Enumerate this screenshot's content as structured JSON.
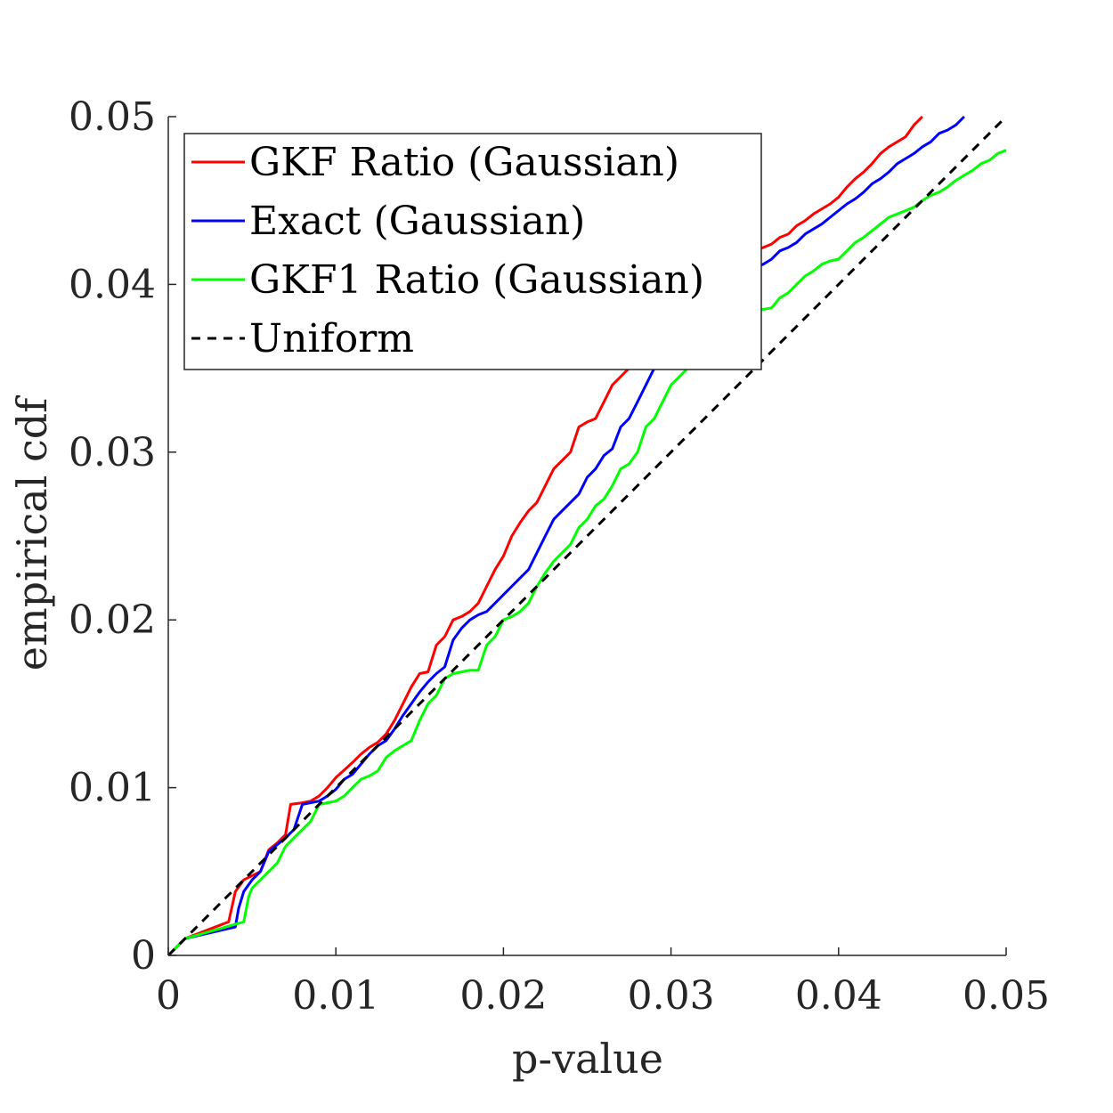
{
  "chart_data": {
    "type": "line",
    "xlabel": "p-value",
    "ylabel": "empirical cdf",
    "xlim": [
      0,
      0.05
    ],
    "ylim": [
      0,
      0.05
    ],
    "xticks": [
      0,
      0.01,
      0.02,
      0.03,
      0.04,
      0.05
    ],
    "yticks": [
      0,
      0.01,
      0.02,
      0.03,
      0.04,
      0.05
    ],
    "xtick_labels": [
      "0",
      "0.01",
      "0.02",
      "0.03",
      "0.04",
      "0.05"
    ],
    "ytick_labels": [
      "0",
      "0.01",
      "0.02",
      "0.03",
      "0.04",
      "0.05"
    ],
    "grid": false,
    "legend_position": "top-left",
    "series": [
      {
        "name": "GKF Ratio (Gaussian)",
        "color": "#ff0000",
        "dash": "solid",
        "x": [
          0,
          0.0005,
          0.001,
          0.0036,
          0.004,
          0.0045,
          0.0055,
          0.006,
          0.0065,
          0.007,
          0.0073,
          0.008,
          0.0085,
          0.009,
          0.0095,
          0.01,
          0.011,
          0.0115,
          0.012,
          0.0125,
          0.013,
          0.0135,
          0.014,
          0.0145,
          0.015,
          0.0155,
          0.016,
          0.0165,
          0.017,
          0.0175,
          0.018,
          0.0185,
          0.019,
          0.0195,
          0.02,
          0.0205,
          0.021,
          0.0215,
          0.022,
          0.0225,
          0.023,
          0.0235,
          0.024,
          0.0245,
          0.025,
          0.0255,
          0.026,
          0.0265,
          0.027,
          0.0275,
          0.028,
          0.035,
          0.0355,
          0.036,
          0.0365,
          0.037,
          0.0375,
          0.038,
          0.0385,
          0.039,
          0.0395,
          0.04,
          0.0405,
          0.041,
          0.0415,
          0.042,
          0.0425,
          0.043,
          0.0435,
          0.044,
          0.0445,
          0.045
        ],
        "y": [
          0,
          0.0005,
          0.001,
          0.002,
          0.0038,
          0.0045,
          0.005,
          0.0063,
          0.0067,
          0.0072,
          0.009,
          0.0091,
          0.0092,
          0.0095,
          0.01,
          0.0106,
          0.0115,
          0.012,
          0.0124,
          0.0127,
          0.0132,
          0.014,
          0.015,
          0.016,
          0.0168,
          0.0169,
          0.0185,
          0.019,
          0.02,
          0.0202,
          0.0205,
          0.021,
          0.022,
          0.023,
          0.0238,
          0.025,
          0.0258,
          0.0265,
          0.027,
          0.028,
          0.029,
          0.0295,
          0.03,
          0.0315,
          0.0318,
          0.032,
          0.033,
          0.034,
          0.0345,
          0.035,
          0.036,
          0.042,
          0.0422,
          0.0424,
          0.0428,
          0.043,
          0.0435,
          0.0438,
          0.0442,
          0.0445,
          0.0448,
          0.0452,
          0.0458,
          0.0463,
          0.0467,
          0.0472,
          0.0478,
          0.0482,
          0.0485,
          0.0488,
          0.0495,
          0.05
        ]
      },
      {
        "name": "Exact (Gaussian)",
        "color": "#0000ff",
        "dash": "solid",
        "x": [
          0,
          0.0005,
          0.001,
          0.004,
          0.0042,
          0.0045,
          0.005,
          0.0055,
          0.006,
          0.0065,
          0.007,
          0.0075,
          0.008,
          0.009,
          0.0095,
          0.01,
          0.0105,
          0.011,
          0.0115,
          0.012,
          0.0125,
          0.013,
          0.0135,
          0.014,
          0.0145,
          0.015,
          0.0155,
          0.016,
          0.0165,
          0.017,
          0.0175,
          0.018,
          0.0185,
          0.019,
          0.0195,
          0.02,
          0.0205,
          0.021,
          0.0215,
          0.022,
          0.0225,
          0.023,
          0.0235,
          0.024,
          0.0245,
          0.025,
          0.0255,
          0.026,
          0.0265,
          0.027,
          0.0275,
          0.028,
          0.0285,
          0.029,
          0.035,
          0.0355,
          0.036,
          0.0365,
          0.037,
          0.0375,
          0.038,
          0.0385,
          0.039,
          0.0395,
          0.04,
          0.0405,
          0.041,
          0.0415,
          0.042,
          0.0425,
          0.043,
          0.0435,
          0.044,
          0.0445,
          0.045,
          0.0455,
          0.046,
          0.0465,
          0.047,
          0.0475
        ],
        "y": [
          0,
          0.0005,
          0.001,
          0.0017,
          0.0028,
          0.0038,
          0.0045,
          0.005,
          0.0062,
          0.0066,
          0.007,
          0.0075,
          0.009,
          0.0092,
          0.0095,
          0.0099,
          0.0105,
          0.0108,
          0.0114,
          0.012,
          0.0125,
          0.0128,
          0.0135,
          0.0143,
          0.015,
          0.0157,
          0.0163,
          0.0168,
          0.0172,
          0.0188,
          0.0195,
          0.02,
          0.0203,
          0.0205,
          0.021,
          0.0215,
          0.022,
          0.0225,
          0.023,
          0.024,
          0.025,
          0.026,
          0.0265,
          0.027,
          0.0275,
          0.0285,
          0.029,
          0.0298,
          0.0302,
          0.0315,
          0.032,
          0.033,
          0.034,
          0.035,
          0.041,
          0.0412,
          0.0415,
          0.042,
          0.0422,
          0.0425,
          0.043,
          0.0433,
          0.0436,
          0.044,
          0.0444,
          0.0448,
          0.0451,
          0.0455,
          0.046,
          0.0463,
          0.0467,
          0.0472,
          0.0475,
          0.0478,
          0.0482,
          0.0485,
          0.049,
          0.0492,
          0.0495,
          0.05
        ]
      },
      {
        "name": "GKF1 Ratio (Gaussian)",
        "color": "#00ff00",
        "dash": "solid",
        "x": [
          0,
          0.0005,
          0.001,
          0.0045,
          0.0048,
          0.005,
          0.0055,
          0.006,
          0.0065,
          0.007,
          0.0075,
          0.008,
          0.0085,
          0.009,
          0.0095,
          0.01,
          0.0105,
          0.011,
          0.0115,
          0.012,
          0.0125,
          0.013,
          0.0135,
          0.014,
          0.0145,
          0.015,
          0.0155,
          0.016,
          0.0165,
          0.017,
          0.0175,
          0.018,
          0.0185,
          0.019,
          0.0195,
          0.02,
          0.0205,
          0.021,
          0.0215,
          0.022,
          0.0225,
          0.023,
          0.0235,
          0.024,
          0.0245,
          0.025,
          0.0255,
          0.026,
          0.0265,
          0.027,
          0.0275,
          0.028,
          0.0285,
          0.029,
          0.0295,
          0.03,
          0.0305,
          0.031,
          0.0315,
          0.032,
          0.0325,
          0.036,
          0.0365,
          0.037,
          0.0375,
          0.038,
          0.0385,
          0.039,
          0.0395,
          0.04,
          0.0405,
          0.041,
          0.0415,
          0.042,
          0.0425,
          0.043,
          0.0435,
          0.044,
          0.0445,
          0.045,
          0.0455,
          0.046,
          0.0465,
          0.047,
          0.0475,
          0.048,
          0.0485,
          0.049,
          0.0495,
          0.05
        ],
        "y": [
          0,
          0.0005,
          0.001,
          0.002,
          0.0035,
          0.004,
          0.0045,
          0.005,
          0.0055,
          0.0065,
          0.007,
          0.0075,
          0.008,
          0.009,
          0.0091,
          0.0092,
          0.0095,
          0.01,
          0.0105,
          0.0107,
          0.011,
          0.0118,
          0.0122,
          0.0125,
          0.0128,
          0.014,
          0.015,
          0.0155,
          0.0165,
          0.0168,
          0.0169,
          0.017,
          0.017,
          0.0185,
          0.019,
          0.02,
          0.0202,
          0.0205,
          0.021,
          0.022,
          0.0228,
          0.0235,
          0.024,
          0.0245,
          0.0255,
          0.026,
          0.0268,
          0.0272,
          0.028,
          0.029,
          0.0293,
          0.03,
          0.0315,
          0.032,
          0.033,
          0.034,
          0.0345,
          0.035,
          0.0358,
          0.037,
          0.038,
          0.0386,
          0.0392,
          0.0395,
          0.04,
          0.0405,
          0.0408,
          0.0412,
          0.0414,
          0.0415,
          0.042,
          0.0425,
          0.0428,
          0.0432,
          0.0436,
          0.044,
          0.0442,
          0.0444,
          0.0446,
          0.045,
          0.0453,
          0.0455,
          0.0458,
          0.0462,
          0.0465,
          0.0468,
          0.0472,
          0.0474,
          0.0478,
          0.048
        ]
      },
      {
        "name": "Uniform",
        "color": "#000000",
        "dash": "dashed",
        "x": [
          0,
          0.05
        ],
        "y": [
          0,
          0.05
        ]
      }
    ]
  }
}
